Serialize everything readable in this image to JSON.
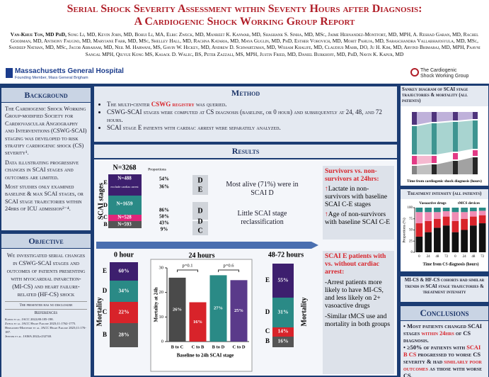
{
  "header": {
    "title_line1": "Serial Shock Severity Assessment within Seventy Hours after Diagnosis:",
    "title_line2": "A Cardiogenic Shock Working Group Report",
    "lead_author": "Van-Khue Ton, MD PhD,",
    "authors": "Song Li, MD, Kevin John, MD, Bohui Li, MA, Elric Zweck, MD, Manreet K. Kanwar, MD, Shashank S. Sinha, MD, MSc, Jaime Hernandez-Montfort, MD, MPH, A. Reshad Garan, MD, Rachel Goodman, MD, Anthony Faugno, MD, Maryjane Farr, MD, MSc, Shelley Hall, MD, Rachna Kataria, MD, Maya Guglin, MD, PhD, Esther Vorovich, MD, Mohit Pahuja, MD, Saraschandra Vallabhajosyula, MD, MSc, Sandeep Nathan, MD, MSc, Jacob Abraham, MD, Neil M. Harwani, MS, Gavin W. Hickey, MD, Andrew D. Schwartzman, MD, Wissam Khalife, MD, Claudius Mahr, DO, Ju H. Kim, MD, Arvind Bhimaraj, MD, MPH, Paavni Sangal MPH, Qiuyue Kong MS, Kasaol D. Walec, BS, Peter Zazzali, MS, MPH, Justin Fried, MD, Daniel Burkhoff, MD, PhD, Navin K. Kapur, MD",
    "logo_left": "Massachusetts General Hospital",
    "logo_left_sub": "Founding Member, Mass General Brigham",
    "logo_right": "The Cardiogenic Shock Working Group"
  },
  "background": {
    "heading": "Background",
    "paragraphs": [
      "The Cardiogenic Shock Working Group-modified Society for Cardiovascular Angiography and Interventions (CSWG-SCAI) staging was developed to risk stratify cardiogenic shock (CS) severity¹.",
      "Data illustrating progressive changes in SCAI stages and outcomes are limited.",
      "Most studies only examined baseline & max SCAI stages, or SCAI stage trajectories within 24hrs of ICU admission²⁻⁴."
    ]
  },
  "objective": {
    "heading": "Objective",
    "text": "We investigated serial changes in CSWG-SCAI stages and outcomes of patients presenting with myocardial infarction- (MI-CS) and heart failure-related (HF-CS) shock",
    "disclosure": "The presenter has no disclosure",
    "references_heading": "References",
    "references": [
      "Kapur et al. JACC 2022;80:185-198.",
      "Zweck et al. JACC Heart Failure 2023;11:1762-1775.",
      "Hernandez-Montfort et al. JACC Heart Failure 2023;11:176-187.",
      "Jentzer et al. JAMA 2022;e232740."
    ]
  },
  "method": {
    "heading": "Method",
    "bullet1_before": "The multi-center ",
    "bullet1_highlight": "CSWG registry",
    "bullet1_after": " was queried.",
    "bullet2": "CSWG-SCAI stages were computed at CS diagnosis (baseline, or 0 hour) and subsequently at 24, 48, and 72 hours.",
    "bullet3": "SCAI stage E patients with cardiac arrest were separately analyzed."
  },
  "results": {
    "heading": "Results",
    "baseline": {
      "total": "N=3268",
      "proportions_label": "Proportions",
      "axis_label": "SCAI stages",
      "stages": [
        "E",
        "D",
        "C",
        "B"
      ],
      "counts": [
        "N=488",
        "N=1659",
        "N=528",
        "N=593"
      ],
      "note": "exclude cardiac arrest",
      "proportions": [
        "54%",
        "36%",
        "86%",
        "50%",
        "43%",
        "9%"
      ],
      "next_stages": [
        "D",
        "E",
        "D",
        "D",
        "C"
      ]
    },
    "summary1": "Most alive (71%) were in SCAI D",
    "summary2": "Little SCAI stage reclassification",
    "survivors": {
      "heading": "Survivors vs. non-survivors at 24hrs:",
      "item1": "Lactate in non-survivors with baseline SCAI C-E stages",
      "item2": "Age of non-survivors with baseline SCAI C-E"
    },
    "hour0": {
      "title": "0 hour",
      "axis_label": "Mortality",
      "stages": [
        "E",
        "D",
        "C",
        "B"
      ],
      "mortality": [
        "60%",
        "34%",
        "22%",
        "28%"
      ]
    },
    "hour24": {
      "title": "24 hours",
      "ylabel": "Mortality at 24h",
      "xlabel": "Baseline to 24h SCAI stage",
      "categories": [
        "B to C",
        "C to B",
        "B to D",
        "C to D"
      ],
      "values": [
        26,
        16,
        27,
        25
      ],
      "value_labels": [
        "26%",
        "16%",
        "27%",
        "25%"
      ],
      "colors": [
        "#4a4a4a",
        "#d8232a",
        "#2a8a86",
        "#5a3a8a"
      ],
      "ylim": [
        0,
        30
      ],
      "yticks": [
        0,
        10,
        20,
        30
      ],
      "pvalues": [
        "p=0.1",
        "p=0.6"
      ]
    },
    "hour48_72": {
      "title": "48-72 hours",
      "axis_label": "Mortality",
      "stages": [
        "E",
        "D",
        "C",
        "B"
      ],
      "mortality": [
        "55%",
        "31%",
        "14%",
        "16%"
      ]
    },
    "scai_e": {
      "heading": "SCAI E patients with vs. without cardiac arrest:",
      "item1": "-Arrest patients more likely to have MI-CS, and less likely on 2+ vasoactive drugs",
      "item2": "-Similar tMCS use and mortality in both groups"
    }
  },
  "sankey": {
    "heading": "Sankey diagram of SCAI stage trajectories & mortality (all patients)",
    "xlabel": "Time from cardiogenic shock diagnosis (hours)"
  },
  "treatment": {
    "heading": "Treatment intensity (all patients)",
    "ylabel": "Proportions (%)",
    "xlabel": "Time from CS diagnosis (hours)",
    "ylim": [
      0,
      100
    ],
    "yticks": [
      0,
      25,
      50,
      75,
      100
    ],
    "categories": [
      "0",
      "24",
      "48",
      "72"
    ],
    "groups": [
      {
        "name": "Vasoactive drugs",
        "series": [
          {
            "color": "#111111",
            "values": [
              35,
              45,
              55,
              60
            ]
          },
          {
            "color": "#d8232a",
            "values": [
              30,
              25,
              20,
              20
            ]
          },
          {
            "color": "#f08cb4",
            "values": [
              25,
              20,
              15,
              12
            ]
          },
          {
            "color": "#2a8a86",
            "values": [
              10,
              10,
              10,
              8
            ]
          }
        ]
      },
      {
        "name": "tMCS devices",
        "series": [
          {
            "color": "#111111",
            "values": [
              45,
              50,
              60,
              65
            ]
          },
          {
            "color": "#d8232a",
            "values": [
              25,
              25,
              20,
              18
            ]
          },
          {
            "color": "#f08cb4",
            "values": [
              20,
              15,
              12,
              10
            ]
          },
          {
            "color": "#2a8a86",
            "values": [
              10,
              10,
              8,
              7
            ]
          }
        ]
      }
    ]
  },
  "caption": "MI-CS & HF-CS cohorts had similar trends in SCAI stage trajectories & treatment intensity",
  "conclusions": {
    "heading": "Conclusions",
    "b1_before": "Most patients changed SCAI stages ",
    "b1_highlight": "within 24hrs",
    "b1_after": " of CS diagnosis.",
    "b2_before": "≥50% of patients with ",
    "b2_highlight": "SCAI B CS",
    "b2_mid": " progressed to worse CS severity & had ",
    "b2_highlight2": "similarly poor outcomes",
    "b2_after": " as those with worse CS."
  }
}
